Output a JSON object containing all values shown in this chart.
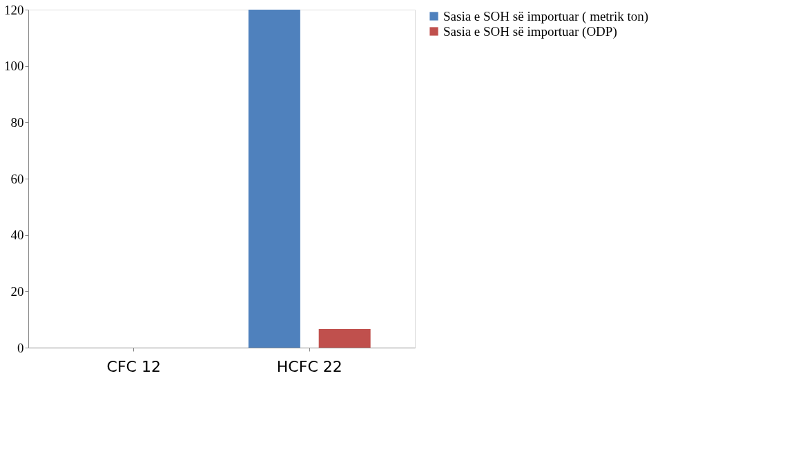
{
  "chart_data": {
    "type": "bar",
    "categories": [
      "CFC 12",
      "HCFC 22"
    ],
    "series": [
      {
        "name": "Sasia e SOH së importuar ( metrik ton)",
        "color": "#4f81bd",
        "values": [
          0,
          120
        ]
      },
      {
        "name": "Sasia e SOH së importuar (ODP)",
        "color": "#c0504d",
        "values": [
          0,
          6.6
        ]
      }
    ],
    "ylim": [
      0,
      120
    ],
    "yticks": [
      0,
      20,
      40,
      60,
      80,
      100,
      120
    ],
    "grid": false,
    "legend": "right"
  }
}
